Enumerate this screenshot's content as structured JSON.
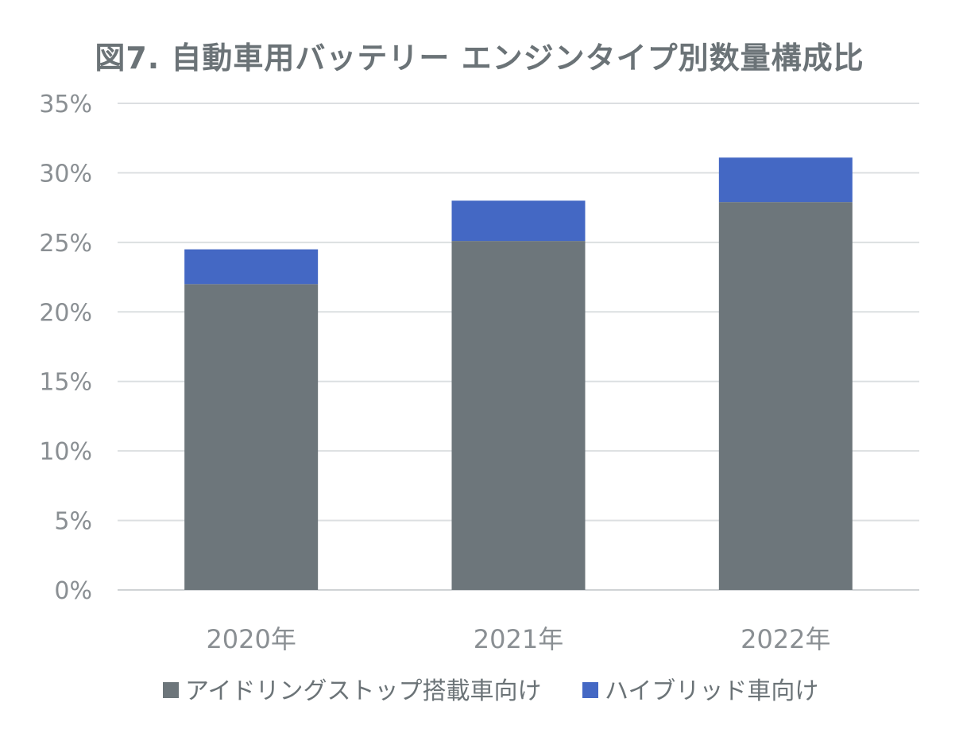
{
  "chart_data": {
    "type": "bar",
    "stacked": true,
    "title": "図7. 自動車用バッテリー エンジンタイプ別数量構成比",
    "categories": [
      "2020年",
      "2021年",
      "2022年"
    ],
    "series": [
      {
        "name": "アイドリングストップ搭載車向け",
        "color": "#6d767b",
        "values": [
          22.0,
          25.1,
          27.9
        ]
      },
      {
        "name": "ハイブリッド車向け",
        "color": "#4468c4",
        "values": [
          2.5,
          2.9,
          3.2
        ]
      }
    ],
    "yticks": [
      "0%",
      "5%",
      "10%",
      "15%",
      "20%",
      "25%",
      "30%",
      "35%"
    ],
    "ylim": [
      0,
      35
    ],
    "ytick_step": 5,
    "grid": true,
    "legend_position": "bottom",
    "xlabel": "",
    "ylabel": ""
  }
}
